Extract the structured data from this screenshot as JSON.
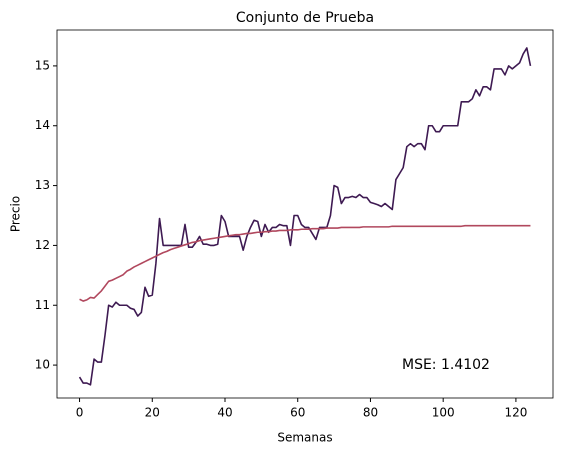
{
  "chart_data": {
    "type": "line",
    "title": "Conjunto de Prueba",
    "xlabel": "Semanas",
    "ylabel": "Precio",
    "annotation": "MSE: 1.4102",
    "x": [
      0,
      1,
      2,
      3,
      4,
      5,
      6,
      7,
      8,
      9,
      10,
      11,
      12,
      13,
      14,
      15,
      16,
      17,
      18,
      19,
      20,
      21,
      22,
      23,
      24,
      25,
      26,
      27,
      28,
      29,
      30,
      31,
      32,
      33,
      34,
      35,
      36,
      37,
      38,
      39,
      40,
      41,
      42,
      43,
      44,
      45,
      46,
      47,
      48,
      49,
      50,
      51,
      52,
      53,
      54,
      55,
      56,
      57,
      58,
      59,
      60,
      61,
      62,
      63,
      64,
      65,
      66,
      67,
      68,
      69,
      70,
      71,
      72,
      73,
      74,
      75,
      76,
      77,
      78,
      79,
      80,
      81,
      82,
      83,
      84,
      85,
      86,
      87,
      88,
      89,
      90,
      91,
      92,
      93,
      94,
      95,
      96,
      97,
      98,
      99,
      100,
      101,
      102,
      103,
      104,
      105,
      106,
      107,
      108,
      109,
      110,
      111,
      112,
      113,
      114,
      115,
      116,
      117,
      118,
      119,
      120,
      121,
      122,
      123,
      124
    ],
    "series": [
      {
        "color": "#3e1a52",
        "values": [
          9.8,
          9.7,
          9.7,
          9.67,
          10.1,
          10.05,
          10.05,
          10.5,
          11.0,
          10.97,
          11.05,
          11.0,
          11.0,
          11.0,
          10.95,
          10.93,
          10.82,
          10.88,
          11.3,
          11.15,
          11.17,
          11.7,
          12.45,
          12.0,
          12.0,
          12.0,
          12.0,
          12.0,
          12.0,
          12.35,
          11.97,
          11.97,
          12.05,
          12.15,
          12.02,
          12.02,
          12.0,
          12.0,
          12.02,
          12.5,
          12.4,
          12.15,
          12.15,
          12.15,
          12.15,
          11.92,
          12.15,
          12.3,
          12.42,
          12.4,
          12.15,
          12.35,
          12.22,
          12.3,
          12.3,
          12.35,
          12.33,
          12.33,
          12.0,
          12.5,
          12.5,
          12.35,
          12.3,
          12.3,
          12.2,
          12.1,
          12.3,
          12.3,
          12.3,
          12.5,
          13.0,
          12.97,
          12.7,
          12.8,
          12.8,
          12.82,
          12.8,
          12.85,
          12.8,
          12.8,
          12.72,
          12.7,
          12.68,
          12.65,
          12.7,
          12.65,
          12.6,
          13.1,
          13.2,
          13.3,
          13.65,
          13.7,
          13.65,
          13.7,
          13.7,
          13.6,
          14.0,
          14.0,
          13.9,
          13.9,
          14.0,
          14.0,
          14.0,
          14.0,
          14.0,
          14.4,
          14.4,
          14.4,
          14.45,
          14.6,
          14.5,
          14.65,
          14.65,
          14.6,
          14.95,
          14.95,
          14.95,
          14.85,
          15.0,
          14.95,
          15.0,
          15.05,
          15.2,
          15.3,
          15.0
        ]
      },
      {
        "color": "#b1485e",
        "values": [
          11.1,
          11.07,
          11.09,
          11.13,
          11.12,
          11.18,
          11.24,
          11.32,
          11.4,
          11.42,
          11.45,
          11.48,
          11.51,
          11.57,
          11.6,
          11.64,
          11.67,
          11.7,
          11.73,
          11.76,
          11.79,
          11.82,
          11.85,
          11.88,
          11.9,
          11.93,
          11.95,
          11.97,
          11.99,
          12.01,
          12.03,
          12.05,
          12.06,
          12.08,
          12.09,
          12.1,
          12.11,
          12.12,
          12.13,
          12.14,
          12.15,
          12.16,
          12.17,
          12.18,
          12.18,
          12.19,
          12.2,
          12.2,
          12.21,
          12.22,
          12.22,
          12.23,
          12.23,
          12.24,
          12.24,
          12.25,
          12.25,
          12.25,
          12.26,
          12.26,
          12.26,
          12.27,
          12.27,
          12.27,
          12.28,
          12.28,
          12.28,
          12.28,
          12.29,
          12.29,
          12.29,
          12.29,
          12.3,
          12.3,
          12.3,
          12.3,
          12.3,
          12.3,
          12.31,
          12.31,
          12.31,
          12.31,
          12.31,
          12.31,
          12.31,
          12.31,
          12.32,
          12.32,
          12.32,
          12.32,
          12.32,
          12.32,
          12.32,
          12.32,
          12.32,
          12.32,
          12.32,
          12.32,
          12.32,
          12.32,
          12.32,
          12.32,
          12.32,
          12.32,
          12.32,
          12.32,
          12.33,
          12.33,
          12.33,
          12.33,
          12.33,
          12.33,
          12.33,
          12.33,
          12.33,
          12.33,
          12.33,
          12.33,
          12.33,
          12.33,
          12.33,
          12.33,
          12.33,
          12.33,
          12.33
        ]
      }
    ],
    "xlim": [
      -6.2,
      130.2
    ],
    "ylim": [
      9.45,
      15.6
    ],
    "xticks": [
      0,
      20,
      40,
      60,
      80,
      100,
      120
    ],
    "yticks": [
      10,
      11,
      12,
      13,
      14,
      15
    ]
  }
}
